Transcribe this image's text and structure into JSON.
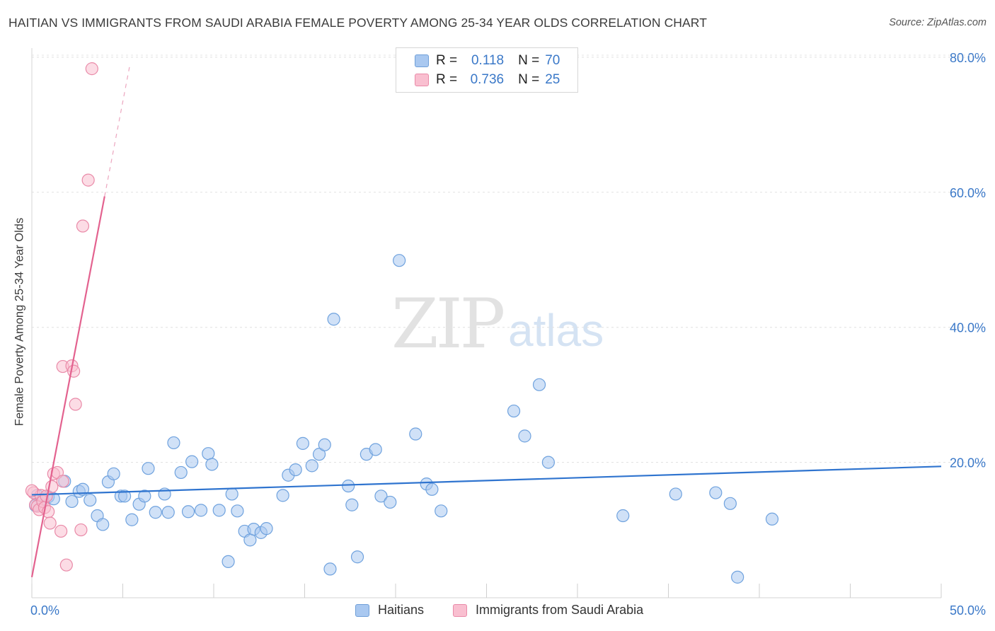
{
  "title": "HAITIAN VS IMMIGRANTS FROM SAUDI ARABIA FEMALE POVERTY AMONG 25-34 YEAR OLDS CORRELATION CHART",
  "source": "Source: ZipAtlas.com",
  "watermark": {
    "zip": "ZIP",
    "atlas": "atlas"
  },
  "legend_top": {
    "r_label": "R =",
    "n_label": "N =",
    "rows": [
      {
        "r": "0.118",
        "n": "70",
        "color": "#a9c8f0",
        "border": "#6f9fd8"
      },
      {
        "r": "0.736",
        "n": "25",
        "color": "#f9bfd0",
        "border": "#e98aa8"
      }
    ]
  },
  "legend_bottom": [
    {
      "label": "Haitians",
      "color": "#a9c8f0",
      "border": "#6f9fd8"
    },
    {
      "label": "Immigrants from Saudi Arabia",
      "color": "#f9bfd0",
      "border": "#e98aa8"
    }
  ],
  "chart_data": {
    "type": "scatter",
    "title": "HAITIAN VS IMMIGRANTS FROM SAUDI ARABIA FEMALE POVERTY AMONG 25-34 YEAR OLDS CORRELATION CHART",
    "xlabel": "",
    "ylabel": "Female Poverty Among 25-34 Year Olds",
    "xlim": [
      0,
      50
    ],
    "ylim": [
      0,
      82
    ],
    "x_tick_labels": [
      "0.0%",
      "50.0%"
    ],
    "y_ticks": [
      20,
      40,
      60,
      80
    ],
    "y_tick_labels": [
      "20.0%",
      "40.0%",
      "60.0%",
      "80.0%"
    ],
    "grid": "horizontal dashed",
    "legend_position": "top-center",
    "series": [
      {
        "name": "Haitians",
        "color": "#6fa2de",
        "fill": "#a9c8f0",
        "trend": {
          "x0": 0,
          "y0": 15.2,
          "x1": 50,
          "y1": 19.4,
          "color": "#2f74cf"
        },
        "points": [
          [
            0.3,
            15.1
          ],
          [
            0.6,
            14.5
          ],
          [
            0.9,
            14.9
          ],
          [
            1.2,
            14.6
          ],
          [
            1.8,
            17.2
          ],
          [
            2.2,
            14.2
          ],
          [
            2.6,
            15.7
          ],
          [
            2.8,
            16.0
          ],
          [
            3.2,
            14.4
          ],
          [
            3.6,
            12.1
          ],
          [
            3.9,
            10.8
          ],
          [
            4.2,
            17.1
          ],
          [
            4.5,
            18.3
          ],
          [
            4.9,
            15.0
          ],
          [
            5.1,
            15.0
          ],
          [
            5.5,
            11.5
          ],
          [
            5.9,
            13.8
          ],
          [
            6.2,
            15.0
          ],
          [
            6.4,
            19.1
          ],
          [
            6.8,
            12.6
          ],
          [
            7.3,
            15.3
          ],
          [
            7.5,
            12.6
          ],
          [
            7.8,
            22.9
          ],
          [
            8.2,
            18.5
          ],
          [
            8.6,
            12.7
          ],
          [
            8.8,
            20.1
          ],
          [
            9.3,
            12.9
          ],
          [
            9.7,
            21.3
          ],
          [
            9.9,
            19.7
          ],
          [
            10.3,
            12.9
          ],
          [
            10.8,
            5.3
          ],
          [
            11.0,
            15.3
          ],
          [
            11.3,
            12.8
          ],
          [
            11.7,
            9.8
          ],
          [
            12.0,
            8.5
          ],
          [
            12.2,
            10.1
          ],
          [
            12.6,
            9.6
          ],
          [
            12.9,
            10.2
          ],
          [
            13.8,
            15.1
          ],
          [
            14.1,
            18.1
          ],
          [
            14.5,
            18.9
          ],
          [
            14.9,
            22.8
          ],
          [
            15.4,
            19.5
          ],
          [
            15.8,
            21.2
          ],
          [
            16.1,
            22.6
          ],
          [
            16.4,
            4.2
          ],
          [
            16.6,
            41.2
          ],
          [
            17.4,
            16.5
          ],
          [
            17.6,
            13.7
          ],
          [
            17.9,
            6.0
          ],
          [
            18.4,
            21.2
          ],
          [
            18.9,
            21.9
          ],
          [
            19.2,
            15.0
          ],
          [
            19.7,
            14.1
          ],
          [
            21.1,
            24.2
          ],
          [
            21.7,
            16.8
          ],
          [
            22.0,
            16.0
          ],
          [
            22.5,
            12.8
          ],
          [
            26.5,
            27.6
          ],
          [
            27.1,
            23.9
          ],
          [
            27.9,
            31.5
          ],
          [
            28.4,
            20.0
          ],
          [
            32.5,
            12.1
          ],
          [
            35.4,
            15.3
          ],
          [
            37.6,
            15.5
          ],
          [
            38.4,
            13.9
          ],
          [
            38.8,
            3.0
          ],
          [
            40.7,
            11.6
          ],
          [
            0.2,
            13.6
          ],
          [
            20.2,
            49.9
          ]
        ]
      },
      {
        "name": "Immigrants from Saudi Arabia",
        "color": "#e98aa8",
        "fill": "#f9bfd0",
        "trend": {
          "x0": 0,
          "y0": 3.0,
          "x1": 4.0,
          "y1": 59.4,
          "color": "#e3628f",
          "extended_to": {
            "x": 5.4,
            "y": 79.0
          }
        },
        "points": [
          [
            0.1,
            15.5
          ],
          [
            0.2,
            13.7
          ],
          [
            0.3,
            13.5
          ],
          [
            0.4,
            13.0
          ],
          [
            0.5,
            15.1
          ],
          [
            0.6,
            14.2
          ],
          [
            0.7,
            13.3
          ],
          [
            0.8,
            15.0
          ],
          [
            0.9,
            12.7
          ],
          [
            1.0,
            11.0
          ],
          [
            1.1,
            16.4
          ],
          [
            1.2,
            18.3
          ],
          [
            1.4,
            18.5
          ],
          [
            1.6,
            9.8
          ],
          [
            1.7,
            17.2
          ],
          [
            1.9,
            4.8
          ],
          [
            1.7,
            34.2
          ],
          [
            2.2,
            34.3
          ],
          [
            2.3,
            33.5
          ],
          [
            2.4,
            28.6
          ],
          [
            2.7,
            10.0
          ],
          [
            2.8,
            55.0
          ],
          [
            3.1,
            61.8
          ],
          [
            3.3,
            78.3
          ],
          [
            0.0,
            15.8
          ]
        ]
      }
    ]
  }
}
